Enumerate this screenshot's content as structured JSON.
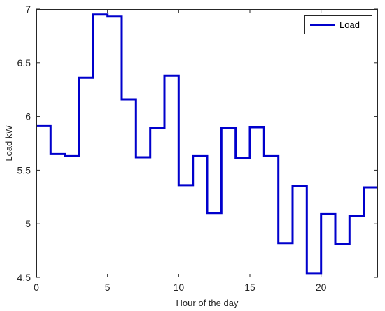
{
  "chart_data": {
    "type": "line",
    "step": true,
    "xlabel": "Hour of the day",
    "ylabel": "Load kW",
    "xlim": [
      0,
      24
    ],
    "ylim": [
      4.5,
      7
    ],
    "xticks": [
      0,
      5,
      10,
      15,
      20
    ],
    "yticks": [
      4.5,
      5,
      5.5,
      6,
      6.5,
      7
    ],
    "xtick_labels": [
      "0",
      "5",
      "10",
      "15",
      "20"
    ],
    "ytick_labels": [
      "4.5",
      "5",
      "5.5",
      "6",
      "6.5",
      "7"
    ],
    "grid": false,
    "legend_position": "top-right",
    "series": [
      {
        "name": "Load",
        "color": "#0000cc",
        "x": [
          0,
          1,
          2,
          3,
          4,
          5,
          6,
          7,
          8,
          9,
          10,
          11,
          12,
          13,
          14,
          15,
          16,
          17,
          18,
          19,
          20,
          21,
          22,
          23
        ],
        "values": [
          5.91,
          5.65,
          5.63,
          6.36,
          6.95,
          6.93,
          6.16,
          5.62,
          5.89,
          6.38,
          5.36,
          5.63,
          5.1,
          5.89,
          5.61,
          5.9,
          5.63,
          4.82,
          5.35,
          4.54,
          5.09,
          4.81,
          5.07,
          5.34
        ]
      }
    ]
  }
}
